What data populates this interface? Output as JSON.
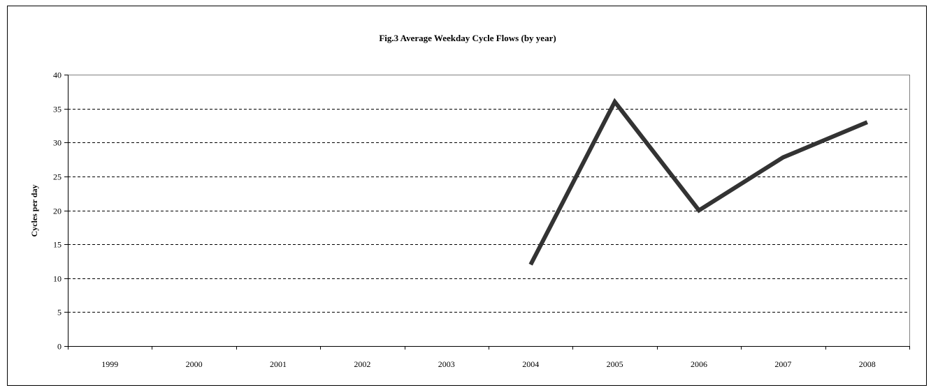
{
  "chart_data": {
    "type": "line",
    "title": "Fig.3  Average Weekday Cycle Flows (by year)",
    "xlabel": "",
    "ylabel": "Cycles per day",
    "categories": [
      "1999",
      "2000",
      "2001",
      "2002",
      "2003",
      "2004",
      "2005",
      "2006",
      "2007",
      "2008"
    ],
    "series": [
      {
        "values": [
          null,
          null,
          null,
          null,
          null,
          12,
          36,
          20,
          27.8,
          33
        ],
        "color": "#333333"
      }
    ],
    "ylim": [
      0,
      40
    ],
    "yticks": [
      0,
      5,
      10,
      15,
      20,
      25,
      30,
      35,
      40
    ],
    "grid": true,
    "grid_style": "dashed",
    "legend": "none"
  }
}
